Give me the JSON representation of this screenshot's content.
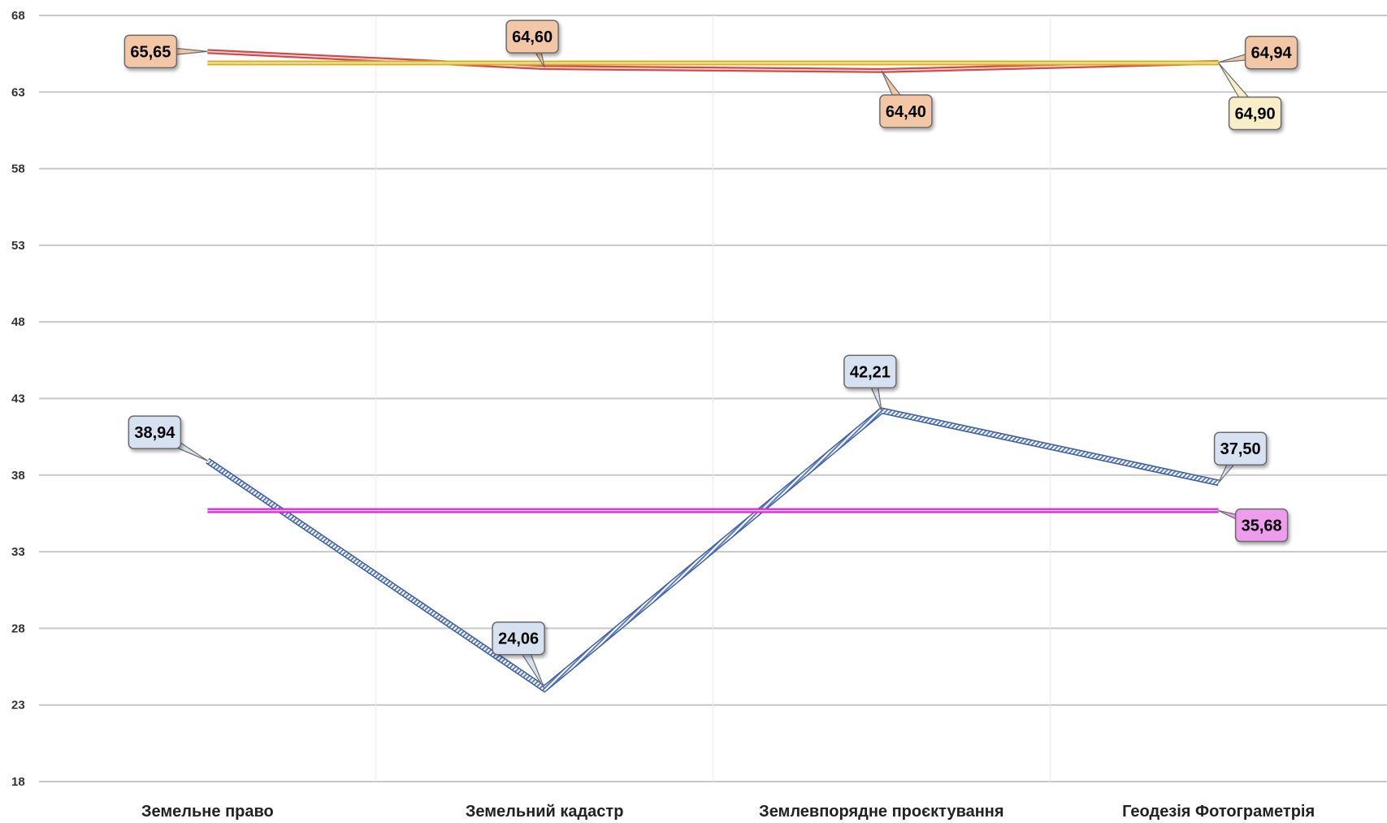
{
  "chart_data": {
    "type": "line",
    "title": "",
    "xlabel": "",
    "ylabel": "",
    "ylim": [
      18,
      68
    ],
    "yticks": [
      "68",
      "63",
      "58",
      "53",
      "48",
      "43",
      "38",
      "33",
      "28",
      "23",
      "18"
    ],
    "categories": [
      "Земельне право",
      "Земельний кадастр",
      "Землевпорядне проєктування",
      "Геодезія Фотограметрія"
    ],
    "grid": "horizontal",
    "series": [
      {
        "values": [
          65.65,
          64.6,
          64.4,
          64.94
        ],
        "color": "#d24b4b",
        "style": "double",
        "labels": [
          {
            "index": 0,
            "text": "65,65",
            "box": "#f3c6a6"
          },
          {
            "index": 1,
            "text": "64,60",
            "box": "#f3c6a6"
          },
          {
            "index": 2,
            "text": "64,40",
            "box": "#f3c6a6"
          },
          {
            "index": 3,
            "text": "64,94",
            "box": "#f3c6a6"
          }
        ]
      },
      {
        "values": [
          64.9,
          64.9,
          64.9,
          64.9
        ],
        "color": "#e0b020",
        "style": "double",
        "labels": [
          {
            "index": 3,
            "text": "64,90",
            "box": "#f8efc8"
          }
        ]
      },
      {
        "values": [
          38.94,
          24.06,
          42.21,
          37.5
        ],
        "color": "#6f8fcf",
        "style": "hatched",
        "labels": [
          {
            "index": 0,
            "text": "38,94",
            "box": "#d6e2f2"
          },
          {
            "index": 1,
            "text": "24,06",
            "box": "#d6e2f2"
          },
          {
            "index": 2,
            "text": "42,21",
            "box": "#d6e2f2"
          },
          {
            "index": 3,
            "text": "37,50",
            "box": "#d6e2f2"
          }
        ]
      },
      {
        "values": [
          35.68,
          35.68,
          35.68,
          35.68
        ],
        "color": "#e020e0",
        "style": "double",
        "labels": [
          {
            "index": 3,
            "text": "35,68",
            "box": "#ee9cee"
          }
        ]
      }
    ]
  }
}
